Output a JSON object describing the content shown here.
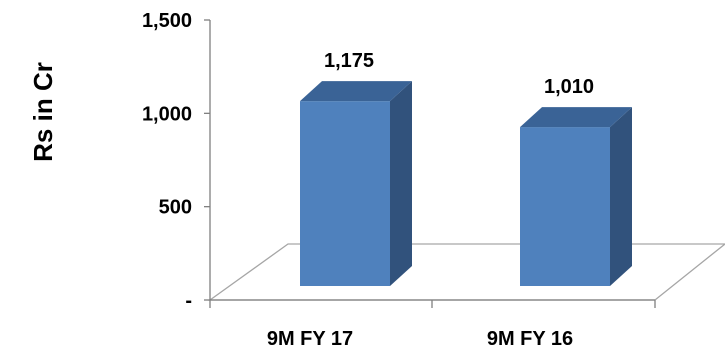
{
  "chart_data": {
    "type": "bar",
    "style": "3d-column",
    "categories": [
      "9M FY 17",
      "9M FY 16"
    ],
    "values": [
      1175,
      1010
    ],
    "data_labels": [
      "1,175",
      "1,010"
    ],
    "title": "",
    "xlabel": "",
    "ylabel": "Rs in Cr",
    "ylim": [
      0,
      1500
    ],
    "yticks": [
      {
        "value": 0,
        "label": "-"
      },
      {
        "value": 500,
        "label": "500"
      },
      {
        "value": 1000,
        "label": "1,000"
      },
      {
        "value": 1500,
        "label": "1,500"
      }
    ],
    "grid": false,
    "legend": "none",
    "colors": {
      "bar_front": "#4f81bd",
      "bar_side": "#31527c",
      "bar_top": "#3a6396",
      "floor_line": "#a6a6a6",
      "axis_line": "#7f7f7f"
    }
  }
}
